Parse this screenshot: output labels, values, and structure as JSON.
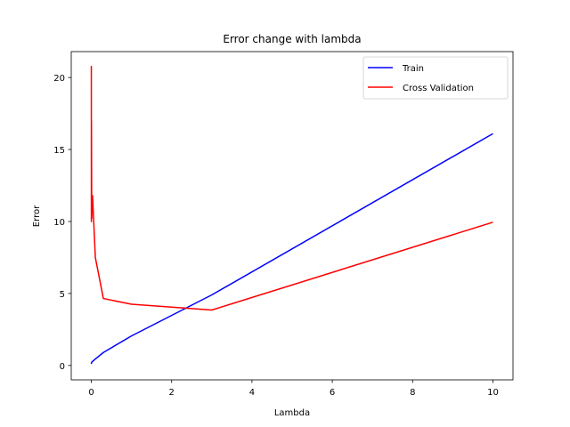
{
  "chart_data": {
    "type": "line",
    "title": "Error change with lambda",
    "xlabel": "Lambda",
    "ylabel": "Error",
    "xlim": [
      -0.5,
      10.5
    ],
    "ylim": [
      -1.0,
      21.8
    ],
    "xticks": [
      0,
      2,
      4,
      6,
      8,
      10
    ],
    "yticks": [
      0,
      5,
      10,
      15,
      20
    ],
    "grid": false,
    "legend_position": "top-right",
    "series": [
      {
        "name": "Train",
        "color": "#0000ff",
        "x": [
          0,
          0.001,
          0.003,
          0.01,
          0.03,
          0.1,
          0.3,
          1,
          3,
          10
        ],
        "y": [
          0.1,
          0.15,
          0.17,
          0.22,
          0.28,
          0.45,
          0.9,
          2.05,
          4.9,
          16.1
        ]
      },
      {
        "name": "Cross Validation",
        "color": "#ff0000",
        "x": [
          0,
          0.001,
          0.003,
          0.01,
          0.03,
          0.1,
          0.3,
          1,
          3,
          10
        ],
        "y": [
          20.8,
          10.0,
          17.0,
          10.2,
          11.8,
          7.5,
          4.65,
          4.25,
          3.85,
          9.95
        ]
      }
    ]
  }
}
